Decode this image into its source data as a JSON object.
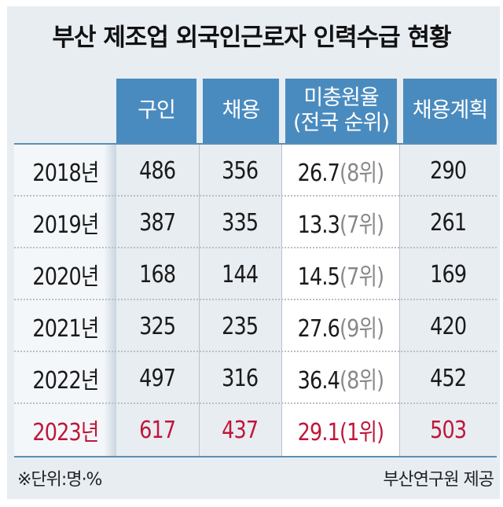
{
  "title": "부산 제조업 외국인근로자 인력수급 현황",
  "colors": {
    "header": "#4a8bbf",
    "highlight": "#c0163a",
    "rank_text": "#888888"
  },
  "chart_data": {
    "type": "table",
    "title": "부산 제조업 외국인근로자 인력수급 현황",
    "columns": [
      "",
      "구인",
      "채용",
      "미충원율\n(전국 순위)",
      "채용계획"
    ],
    "header_lines": {
      "rate_line1": "미충원율",
      "rate_line2": "(전국 순위)"
    },
    "rows": [
      {
        "year": "2018년",
        "openings": "486",
        "hired": "356",
        "rate": "26.7",
        "rank": "(8위)",
        "plan": "290"
      },
      {
        "year": "2019년",
        "openings": "387",
        "hired": "335",
        "rate": "13.3",
        "rank": "(7위)",
        "plan": "261"
      },
      {
        "year": "2020년",
        "openings": "168",
        "hired": "144",
        "rate": "14.5",
        "rank": "(7위)",
        "plan": "169"
      },
      {
        "year": "2021년",
        "openings": "325",
        "hired": "235",
        "rate": "27.6",
        "rank": "(9위)",
        "plan": "420"
      },
      {
        "year": "2022년",
        "openings": "497",
        "hired": "316",
        "rate": "36.4",
        "rank": "(8위)",
        "plan": "452"
      },
      {
        "year": "2023년",
        "openings": "617",
        "hired": "437",
        "rate": "29.1",
        "rank": "(1위)",
        "plan": "503",
        "highlighted": true
      }
    ]
  },
  "footer": {
    "unit": "※단위:명·%",
    "source": "부산연구원 제공"
  }
}
